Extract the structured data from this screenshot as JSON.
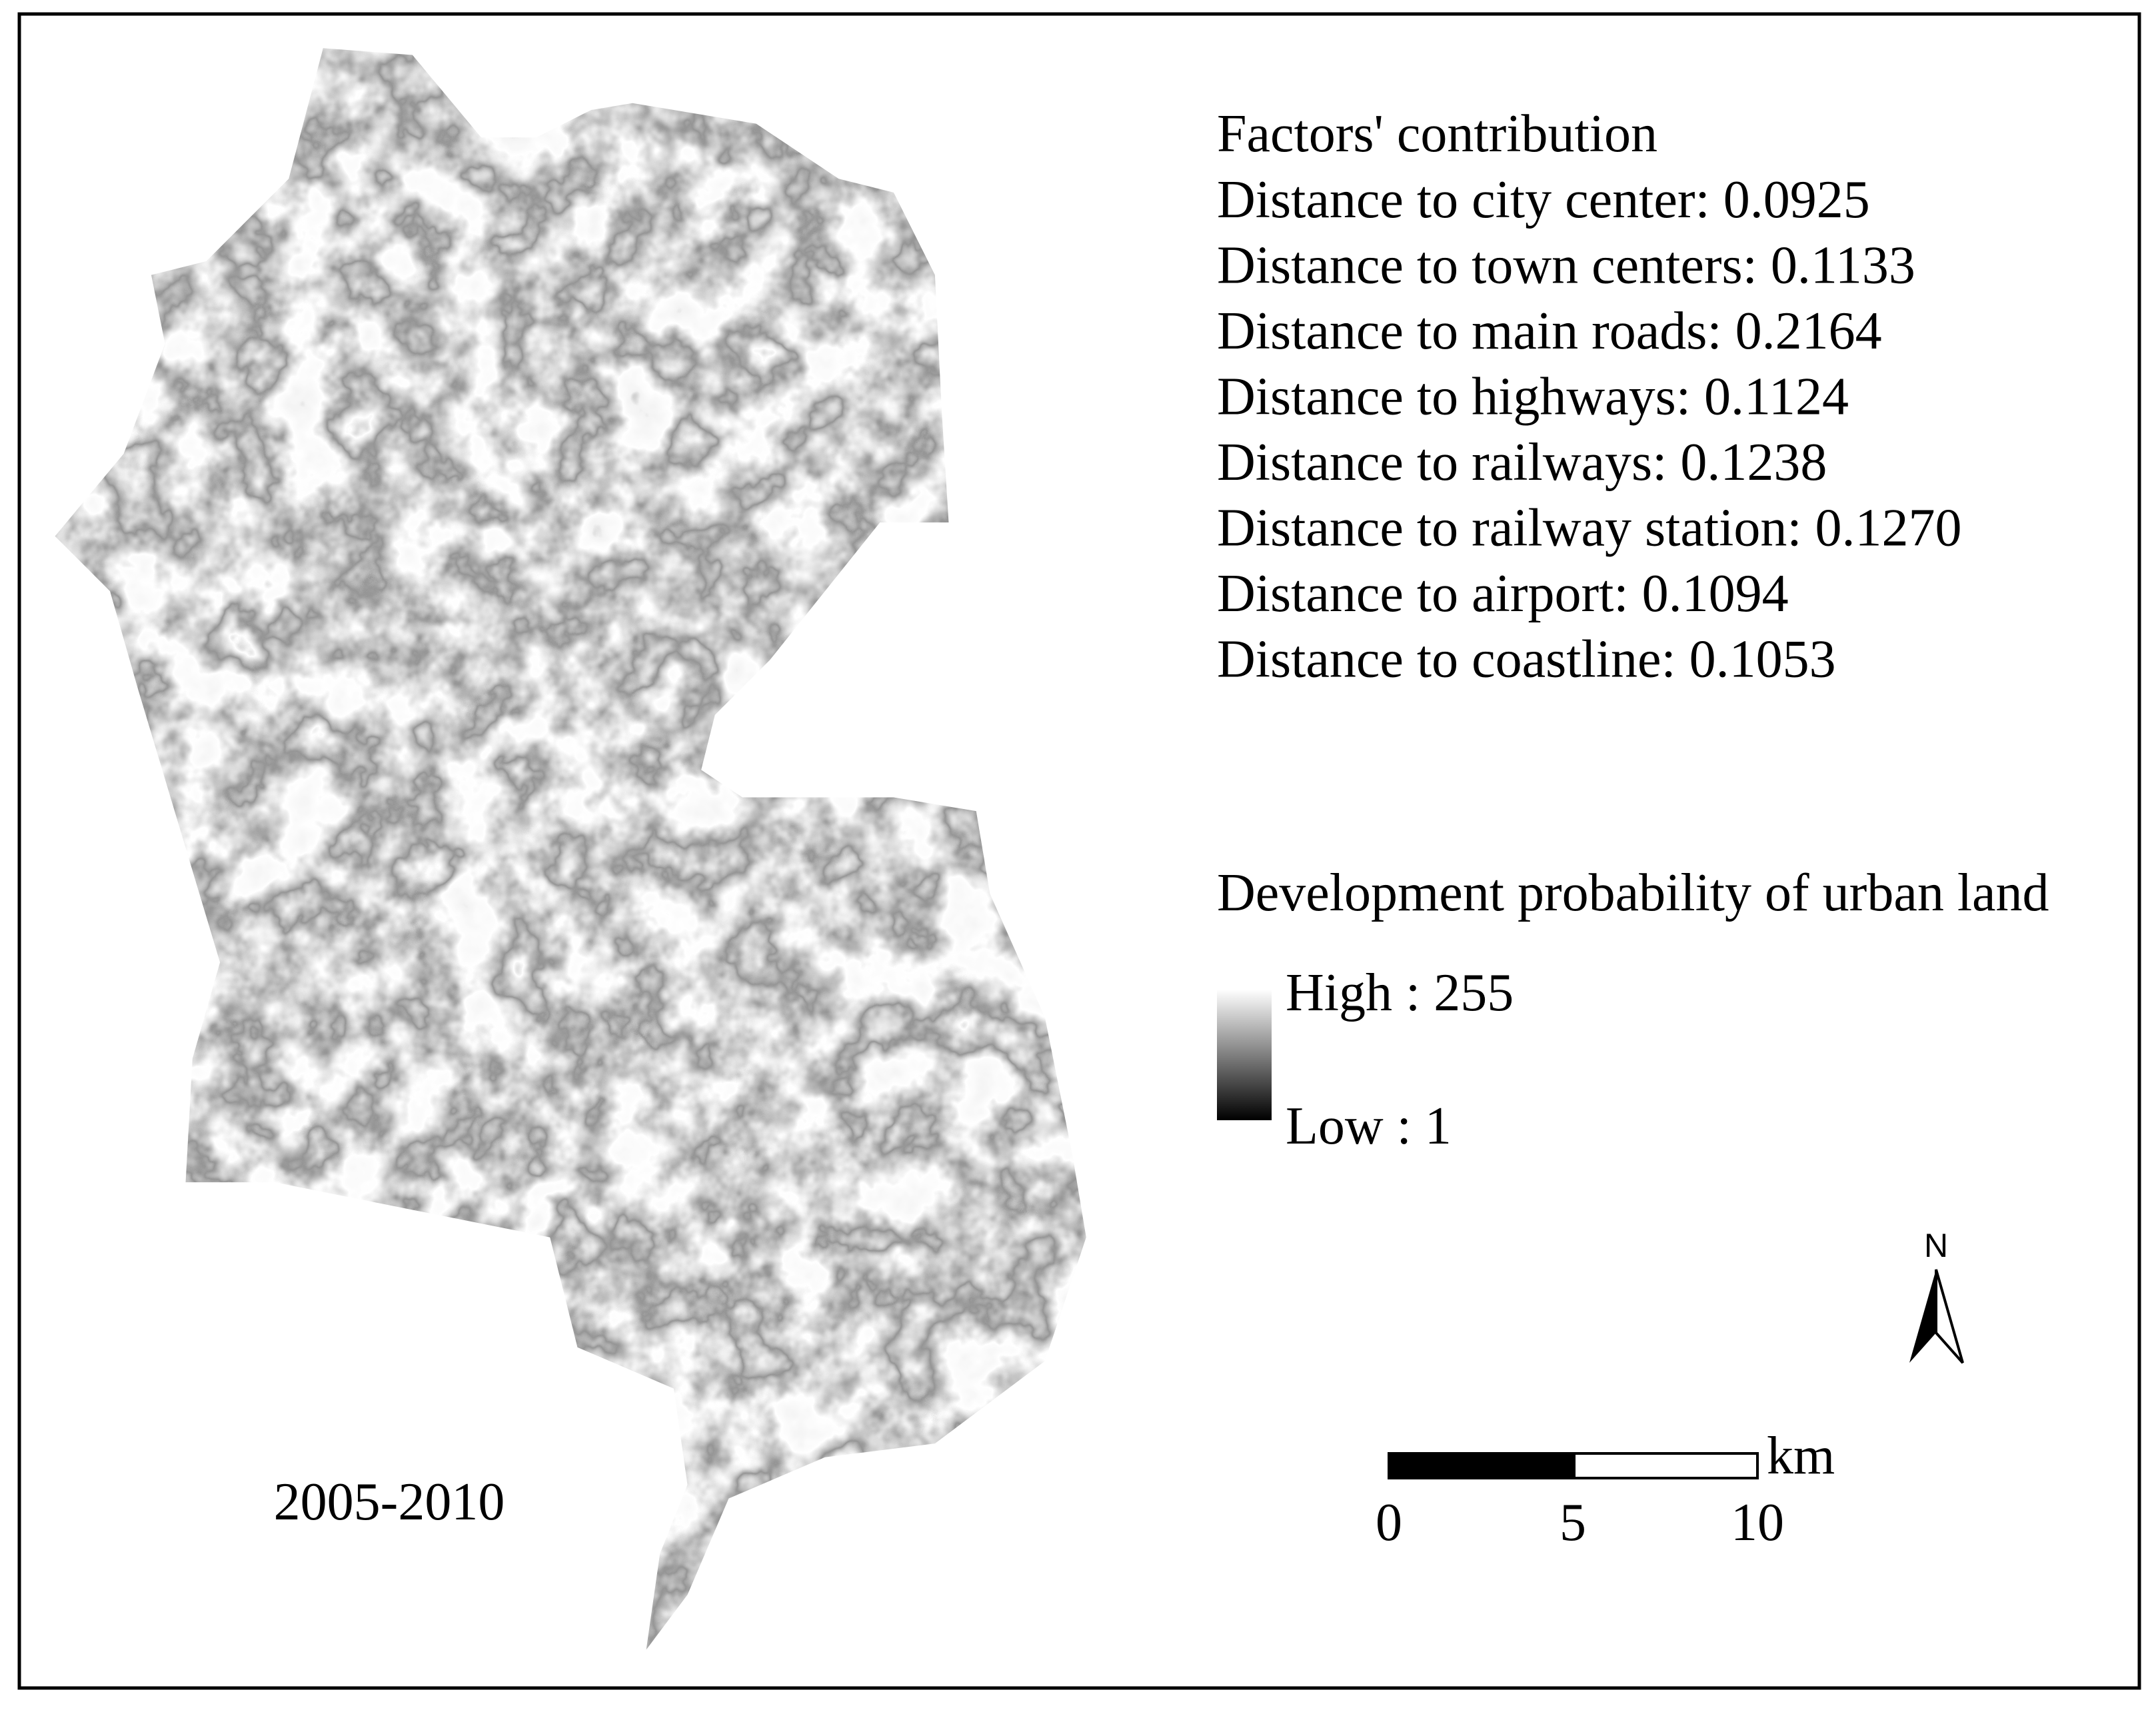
{
  "factors": {
    "title": "Factors' contribution",
    "items": [
      "Distance to city center: 0.0925",
      "Distance to town centers: 0.1133",
      "Distance to main roads: 0.2164",
      "Distance to highways: 0.1124",
      "Distance to railways: 0.1238",
      "Distance to railway station: 0.1270",
      "Distance to airport: 0.1094",
      "Distance to coastline: 0.1053"
    ]
  },
  "legend": {
    "title": "Development  probability of urban land",
    "high": "High : 255",
    "low": "Low : 1"
  },
  "north": "N",
  "scale_bar": {
    "unit": "km",
    "ticks": [
      "0",
      "5",
      "10"
    ]
  },
  "period": "2005-2010"
}
